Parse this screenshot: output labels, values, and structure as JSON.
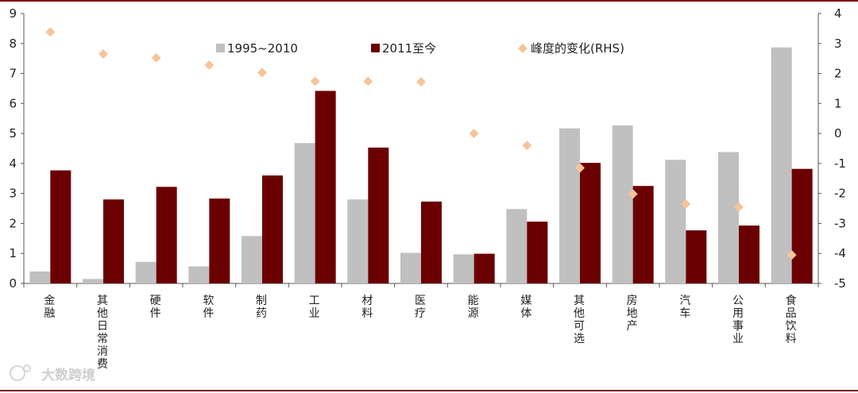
{
  "chart_data": {
    "type": "bar",
    "categories": [
      "金融",
      "其他日常消费",
      "硬件",
      "软件",
      "制药",
      "工业",
      "材料",
      "医疗",
      "能源",
      "媒体",
      "其他可选",
      "房地产",
      "汽车",
      "公用事业",
      "食品饮料"
    ],
    "series": [
      {
        "name": "1995~2010",
        "type": "bar",
        "axis": "left",
        "color": "#c0c0c0",
        "values": [
          0.4,
          0.15,
          0.72,
          0.57,
          1.58,
          4.68,
          2.8,
          1.02,
          0.97,
          2.48,
          5.17,
          5.27,
          4.12,
          4.38,
          7.87
        ]
      },
      {
        "name": "2011至今",
        "type": "bar",
        "axis": "left",
        "color": "#6b0000",
        "values": [
          3.77,
          2.8,
          3.22,
          2.83,
          3.6,
          6.42,
          4.53,
          2.73,
          0.99,
          2.06,
          4.02,
          3.25,
          1.77,
          1.93,
          3.82
        ]
      },
      {
        "name": "峰度的变化(RHS)",
        "type": "scatter",
        "axis": "right",
        "color": "#f7c49a",
        "values": [
          3.38,
          2.65,
          2.52,
          2.28,
          2.03,
          1.74,
          1.74,
          1.72,
          0.0,
          -0.4,
          -1.15,
          -2.02,
          -2.35,
          -2.45,
          -4.05
        ]
      }
    ],
    "y_left": {
      "min": 0,
      "max": 9,
      "ticks": [
        "0",
        "1",
        "2",
        "3",
        "4",
        "5",
        "6",
        "7",
        "8",
        "9"
      ]
    },
    "y_right": {
      "min": -5,
      "max": 4,
      "ticks": [
        "-5",
        "-4",
        "-3",
        "-2",
        "-1",
        "0",
        "1",
        "2",
        "3",
        "4"
      ]
    },
    "legend_placement": "top-center",
    "grid": false
  },
  "watermark": "大数跨境",
  "colors": {
    "frame": "#7a0000",
    "axis": "#555555"
  }
}
